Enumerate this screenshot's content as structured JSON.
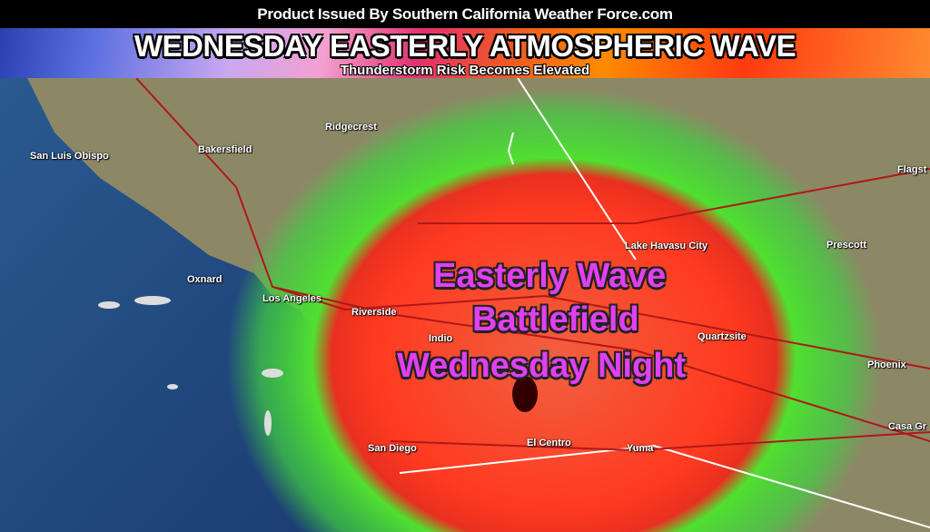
{
  "header": {
    "issuer": "Product Issued By Southern California Weather Force.com",
    "title": "WEDNESDAY EASTERLY ATMOSPHERIC WAVE",
    "subtitle": "Thunderstorm Risk Becomes Elevated"
  },
  "map": {
    "annotation": [
      "Easterly Wave",
      "Battlefield",
      "Wednesday Night"
    ],
    "annotation_color": "#e040f0",
    "risk_colors": {
      "elevated": "#ff3a20",
      "marginal": "#30e030"
    },
    "cities": [
      "San Luis Obispo",
      "Bakersfield",
      "Ridgecrest",
      "Oxnard",
      "Los Angeles",
      "Riverside",
      "Indio",
      "San Diego",
      "El Centro",
      "Yuma",
      "Lake Havasu City",
      "Quartzsite",
      "Prescott",
      "Phoenix",
      "Casa Gr",
      "Flagst"
    ]
  }
}
